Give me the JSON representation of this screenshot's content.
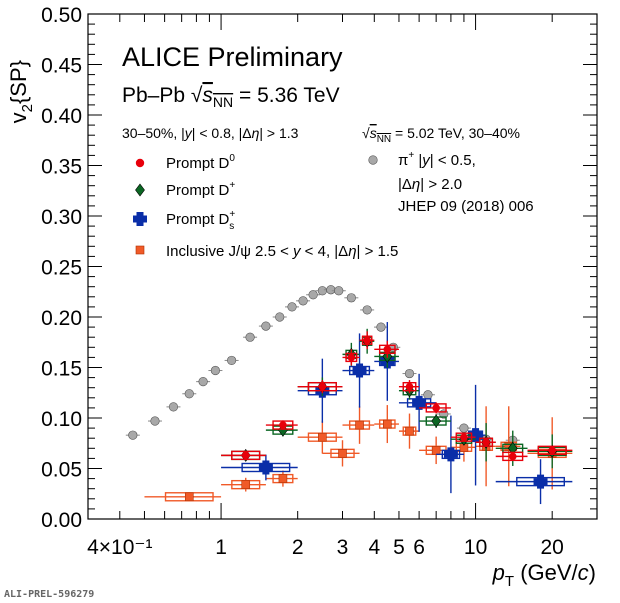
{
  "chart_data": {
    "type": "scatter",
    "title": "ALICE Preliminary",
    "subtitle": "Pb–Pb √s_NN = 5.36 TeV",
    "xlabel": "pT (GeV/c)",
    "ylabel": "v2{SP}",
    "x_scale": "log",
    "xlim": [
      0.3,
      30
    ],
    "ylim": [
      0,
      0.5
    ],
    "x_ticks": [
      "4×10⁻¹",
      "1",
      "2",
      "3",
      "4",
      "5",
      "6",
      "10",
      "20"
    ],
    "y_ticks": [
      "0.00",
      "0.05",
      "0.10",
      "0.15",
      "0.20",
      "0.25",
      "0.30",
      "0.35",
      "0.40",
      "0.45",
      "0.50"
    ],
    "legend_header_left": "30–50%, |y| < 0.8, |Δη| > 1.3",
    "legend_header_right": "√s_NN = 5.02 TeV, 30–40%",
    "reference": "JHEP 09 (2018) 006",
    "footer": "ALI-PREL-596279",
    "series": [
      {
        "name": "Prompt D0",
        "color": "#e8000b",
        "marker": "circle",
        "points": [
          {
            "x": 1.25,
            "y": 0.063,
            "xerr": 0.25
          },
          {
            "x": 1.75,
            "y": 0.093,
            "xerr": 0.25
          },
          {
            "x": 2.5,
            "y": 0.131,
            "xerr": 0.5
          },
          {
            "x": 3.25,
            "y": 0.16,
            "xerr": 0.25
          },
          {
            "x": 3.75,
            "y": 0.177,
            "xerr": 0.25
          },
          {
            "x": 4.5,
            "y": 0.168,
            "xerr": 0.5
          },
          {
            "x": 5.5,
            "y": 0.131,
            "xerr": 0.5
          },
          {
            "x": 7.0,
            "y": 0.11,
            "xerr": 1.0
          },
          {
            "x": 9.0,
            "y": 0.081,
            "xerr": 1.0
          },
          {
            "x": 11.0,
            "y": 0.076,
            "xerr": 1.0
          },
          {
            "x": 14.0,
            "y": 0.062,
            "xerr": 2.0
          },
          {
            "x": 20.0,
            "y": 0.068,
            "xerr": 4.0
          }
        ]
      },
      {
        "name": "Prompt D+",
        "color": "#0b6623",
        "marker": "diamond",
        "points": [
          {
            "x": 1.25,
            "y": 0.063,
            "xerr": 0.25
          },
          {
            "x": 1.75,
            "y": 0.088,
            "xerr": 0.25
          },
          {
            "x": 2.5,
            "y": 0.131,
            "xerr": 0.5
          },
          {
            "x": 3.25,
            "y": 0.163,
            "xerr": 0.25
          },
          {
            "x": 3.75,
            "y": 0.176,
            "xerr": 0.25
          },
          {
            "x": 4.5,
            "y": 0.161,
            "xerr": 0.5
          },
          {
            "x": 5.5,
            "y": 0.127,
            "xerr": 0.5
          },
          {
            "x": 7.0,
            "y": 0.097,
            "xerr": 1.0
          },
          {
            "x": 9.0,
            "y": 0.079,
            "xerr": 1.0
          },
          {
            "x": 11.0,
            "y": 0.076,
            "xerr": 1.0
          },
          {
            "x": 14.0,
            "y": 0.07,
            "xerr": 2.0
          },
          {
            "x": 20.0,
            "y": 0.067,
            "xerr": 4.0
          }
        ]
      },
      {
        "name": "Prompt Ds+",
        "color": "#0a2ea8",
        "marker": "cross",
        "points": [
          {
            "x": 1.5,
            "y": 0.051,
            "xerr": 0.5
          },
          {
            "x": 2.5,
            "y": 0.127,
            "xerr": 0.5
          },
          {
            "x": 3.5,
            "y": 0.147,
            "xerr": 0.5
          },
          {
            "x": 4.5,
            "y": 0.156,
            "xerr": 0.5
          },
          {
            "x": 6.0,
            "y": 0.115,
            "xerr": 1.0
          },
          {
            "x": 8.0,
            "y": 0.064,
            "xerr": 1.0
          },
          {
            "x": 10.0,
            "y": 0.083,
            "xerr": 1.0
          },
          {
            "x": 18.0,
            "y": 0.037,
            "xerr": 6.0
          }
        ]
      },
      {
        "name": "Inclusive J/ψ 2.5 < y < 4, |Δη| > 1.5",
        "color": "#f05a28",
        "marker": "square",
        "points": [
          {
            "x": 0.75,
            "y": 0.022,
            "xerr": 0.25
          },
          {
            "x": 1.25,
            "y": 0.034,
            "xerr": 0.25
          },
          {
            "x": 1.75,
            "y": 0.04,
            "xerr": 0.25
          },
          {
            "x": 2.5,
            "y": 0.081,
            "xerr": 0.5
          },
          {
            "x": 3.0,
            "y": 0.065,
            "xerr": 0.5
          },
          {
            "x": 3.5,
            "y": 0.093,
            "xerr": 0.5
          },
          {
            "x": 4.5,
            "y": 0.094,
            "xerr": 0.5
          },
          {
            "x": 5.5,
            "y": 0.087,
            "xerr": 0.5
          },
          {
            "x": 7.0,
            "y": 0.068,
            "xerr": 1.0
          },
          {
            "x": 9.0,
            "y": 0.071,
            "xerr": 1.0
          },
          {
            "x": 11.0,
            "y": 0.072,
            "xerr": 1.0
          },
          {
            "x": 13.5,
            "y": 0.072,
            "xerr": 1.5
          },
          {
            "x": 20.0,
            "y": 0.065,
            "xerr": 4.0
          }
        ]
      },
      {
        "name": "π+ |y| < 0.5, |Δη| > 2.0",
        "color": "#a8a8a8",
        "marker": "circle-open",
        "points": [
          {
            "x": 0.45,
            "y": 0.083
          },
          {
            "x": 0.55,
            "y": 0.097
          },
          {
            "x": 0.65,
            "y": 0.111
          },
          {
            "x": 0.75,
            "y": 0.124
          },
          {
            "x": 0.85,
            "y": 0.136
          },
          {
            "x": 0.95,
            "y": 0.147
          },
          {
            "x": 1.1,
            "y": 0.157
          },
          {
            "x": 1.3,
            "y": 0.18
          },
          {
            "x": 1.5,
            "y": 0.191
          },
          {
            "x": 1.7,
            "y": 0.2
          },
          {
            "x": 1.9,
            "y": 0.21
          },
          {
            "x": 2.1,
            "y": 0.216
          },
          {
            "x": 2.3,
            "y": 0.222
          },
          {
            "x": 2.5,
            "y": 0.226
          },
          {
            "x": 2.7,
            "y": 0.227
          },
          {
            "x": 2.9,
            "y": 0.226
          },
          {
            "x": 3.25,
            "y": 0.219
          },
          {
            "x": 3.75,
            "y": 0.207
          },
          {
            "x": 4.25,
            "y": 0.19
          },
          {
            "x": 4.75,
            "y": 0.17
          },
          {
            "x": 5.5,
            "y": 0.144
          },
          {
            "x": 6.5,
            "y": 0.123
          },
          {
            "x": 7.5,
            "y": 0.104
          },
          {
            "x": 9.0,
            "y": 0.09
          },
          {
            "x": 11.0,
            "y": 0.079
          },
          {
            "x": 14.0,
            "y": 0.078
          }
        ]
      }
    ]
  }
}
